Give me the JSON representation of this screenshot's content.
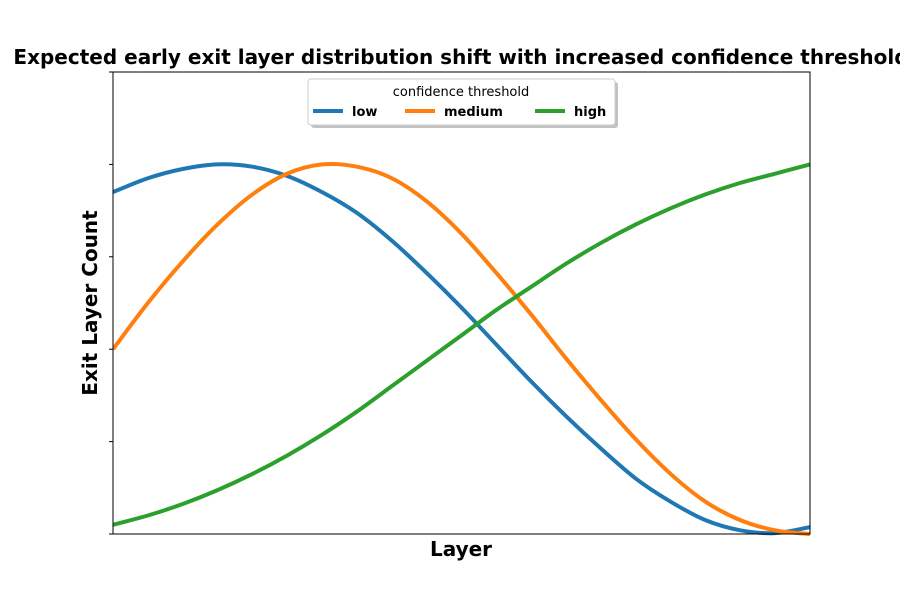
{
  "chart_data": {
    "type": "line",
    "title": "Expected early exit layer distribution shift with increased confidence threshold",
    "xlabel": "Layer",
    "ylabel": "Exit Layer Count",
    "xlim": [
      0,
      1
    ],
    "ylim": [
      0,
      1
    ],
    "grid": false,
    "x_tick_labels": false,
    "y_tick_labels": false,
    "legend": {
      "title": "confidence threshold",
      "placement": "top-center",
      "columns": 3
    },
    "x": [
      0.0,
      0.05,
      0.1,
      0.15,
      0.2,
      0.25,
      0.3,
      0.35,
      0.4,
      0.45,
      0.5,
      0.55,
      0.6,
      0.65,
      0.7,
      0.75,
      0.8,
      0.85,
      0.9,
      0.95,
      1.0
    ],
    "series": [
      {
        "name": "low",
        "color": "#1f77b4",
        "values": [
          0.74,
          0.77,
          0.79,
          0.8,
          0.795,
          0.775,
          0.74,
          0.695,
          0.635,
          0.565,
          0.49,
          0.41,
          0.33,
          0.255,
          0.185,
          0.12,
          0.07,
          0.03,
          0.008,
          0.002,
          0.015
        ]
      },
      {
        "name": "medium",
        "color": "#ff7f0e",
        "values": [
          0.4,
          0.5,
          0.59,
          0.67,
          0.735,
          0.78,
          0.8,
          0.795,
          0.77,
          0.72,
          0.65,
          0.565,
          0.475,
          0.38,
          0.29,
          0.205,
          0.13,
          0.07,
          0.03,
          0.008,
          0.0
        ]
      },
      {
        "name": "high",
        "color": "#2ca02c",
        "values": [
          0.02,
          0.04,
          0.065,
          0.095,
          0.13,
          0.17,
          0.215,
          0.265,
          0.32,
          0.375,
          0.43,
          0.485,
          0.535,
          0.585,
          0.63,
          0.67,
          0.705,
          0.735,
          0.76,
          0.78,
          0.8
        ]
      }
    ]
  }
}
